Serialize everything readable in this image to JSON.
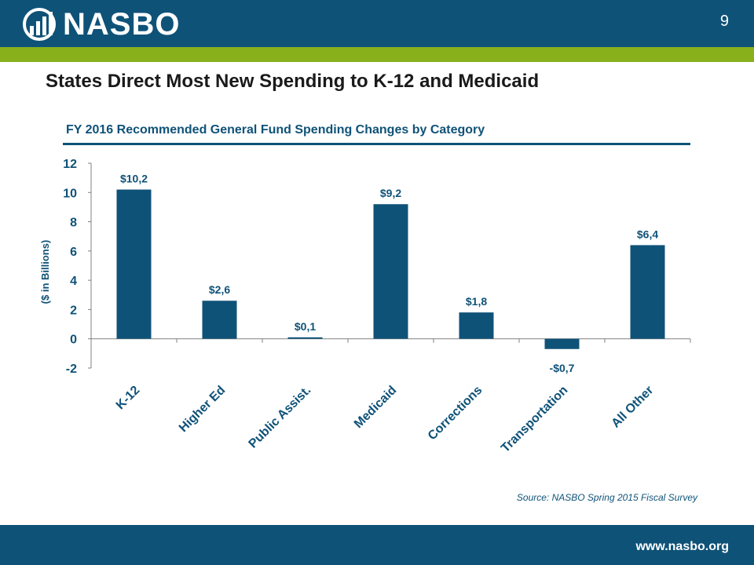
{
  "header": {
    "logo_text": "NASBO",
    "page_number": "9"
  },
  "slide_title": "States Direct Most New Spending to K-12 and Medicaid",
  "source": "Source: NASBO Spring 2015 Fiscal Survey",
  "footer": {
    "url": "www.nasbo.org"
  },
  "colors": {
    "header": "#0f5278",
    "accent": "#87b01b",
    "bar": "#0f5278"
  },
  "chart_data": {
    "type": "bar",
    "title": "FY 2016 Recommended General Fund Spending Changes by Category",
    "ylabel": "($ in Billions)",
    "xlabel": "",
    "categories": [
      "K-12",
      "Higher Ed",
      "Public Assist.",
      "Medicaid",
      "Corrections",
      "Transportation",
      "All Other"
    ],
    "values": [
      10.2,
      2.6,
      0.1,
      9.2,
      1.8,
      -0.7,
      6.4
    ],
    "data_labels": [
      "$10,2",
      "$2,6",
      "$0,1",
      "$9,2",
      "$1,8",
      "-$0,7",
      "$6,4"
    ],
    "ylim": [
      -2,
      12
    ],
    "yticks": [
      12,
      10,
      8,
      6,
      4,
      2,
      0,
      -2
    ],
    "grid": false,
    "legend": "none"
  }
}
